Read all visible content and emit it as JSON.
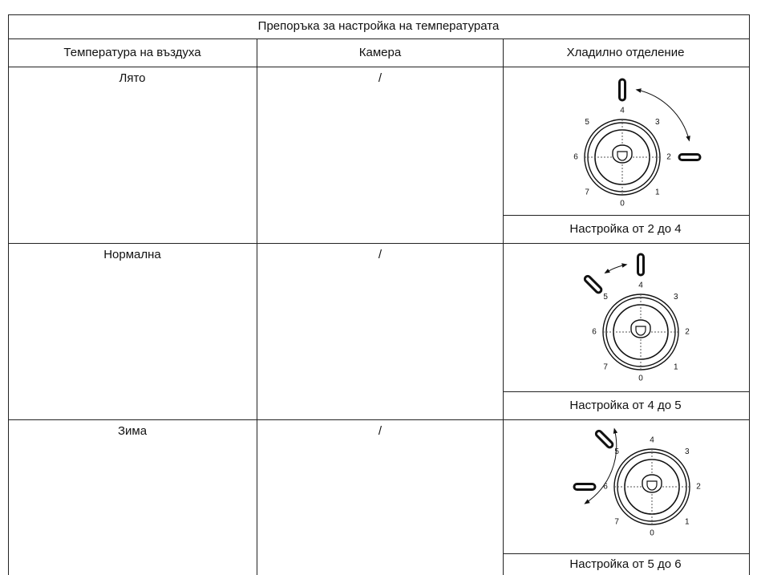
{
  "table": {
    "title": "Препоръка за настройка на температурата",
    "header": [
      "Температура на въздуха",
      "Камера",
      "Хладилно отделение"
    ],
    "rows": [
      {
        "air": "Лято",
        "camera": "/",
        "setting": "Настройка от 2 до 4"
      },
      {
        "air": "Нормална",
        "camera": "/",
        "setting": "Настройка от 4 до 5"
      },
      {
        "air": "Зима",
        "camera": "/",
        "setting": "Настройка от 5 до 6"
      }
    ]
  },
  "dial_labels": [
    "0",
    "1",
    "2",
    "3",
    "4",
    "5",
    "6",
    "7"
  ]
}
